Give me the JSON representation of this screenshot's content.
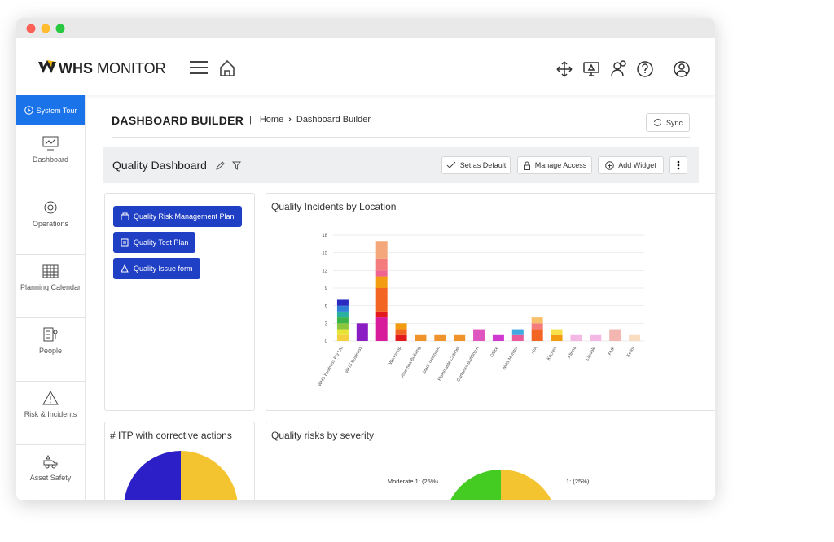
{
  "header": {
    "logo_bold": "WHS",
    "logo_light": "MONITOR"
  },
  "sidebar": {
    "tour": "System Tour",
    "items": [
      "Dashboard",
      "Operations",
      "Planning Calendar",
      "People",
      "Risk & Incidents",
      "Asset Safety"
    ]
  },
  "page": {
    "title": "DASHBOARD BUILDER",
    "breadcrumb": [
      "Home",
      "Dashboard Builder"
    ],
    "sync": "Sync"
  },
  "toolbar": {
    "title": "Quality Dashboard",
    "buttons": [
      "Set as Default",
      "Manage Access",
      "Add Widget"
    ]
  },
  "links": [
    "Quality Risk Management Plan",
    "Quality Test Plan",
    "Quality Issue form"
  ],
  "incidents": {
    "title": "Quality Incidents by Location",
    "categories": [
      "WHS Business Pty Ltd",
      "WHS Business",
      null,
      "Workshop",
      "Alaemba Building",
      "black mountain",
      "Flammable Cabinet",
      "Canberra Building A",
      "Office",
      "WHS Monitor",
      "N/A",
      "Kitchen",
      "Altona",
      "Lilydale",
      "FMF",
      "Keilor"
    ],
    "stacks": [
      [
        {
          "value": 1,
          "color": "#f4d03f"
        },
        {
          "value": 1,
          "color": "#e8e337"
        },
        {
          "value": 1,
          "color": "#8cc63f"
        },
        {
          "value": 1,
          "color": "#3cb44b"
        },
        {
          "value": 1,
          "color": "#2ab0a0"
        },
        {
          "value": 1,
          "color": "#2f7fd8"
        },
        {
          "value": 1,
          "color": "#2a2ac0"
        }
      ],
      [
        {
          "value": 3,
          "color": "#8a1cc4"
        }
      ],
      [
        {
          "value": 4,
          "color": "#d81b9a"
        },
        {
          "value": 1,
          "color": "#e31a1c"
        },
        {
          "value": 4,
          "color": "#f26522"
        },
        {
          "value": 2,
          "color": "#f39c12"
        },
        {
          "value": 1,
          "color": "#f06292"
        },
        {
          "value": 2,
          "color": "#f47c7c"
        },
        {
          "value": 3,
          "color": "#f4a77a"
        }
      ],
      [
        {
          "value": 1,
          "color": "#e31a1c"
        },
        {
          "value": 1,
          "color": "#f26522"
        },
        {
          "value": 1,
          "color": "#f39c12"
        }
      ],
      [
        {
          "value": 1,
          "color": "#f0932b"
        }
      ],
      [
        {
          "value": 1,
          "color": "#f0932b"
        }
      ],
      [
        {
          "value": 1,
          "color": "#f0932b"
        }
      ],
      [
        {
          "value": 2,
          "color": "#e056c0"
        }
      ],
      [
        {
          "value": 1,
          "color": "#d13ad1"
        }
      ],
      [
        {
          "value": 1,
          "color": "#e85a9a"
        },
        {
          "value": 1,
          "color": "#3fa9e0"
        }
      ],
      [
        {
          "value": 2,
          "color": "#f26522"
        },
        {
          "value": 1,
          "color": "#f47c7c"
        },
        {
          "value": 1,
          "color": "#f7c06a"
        }
      ],
      [
        {
          "value": 1,
          "color": "#f39c12"
        },
        {
          "value": 1,
          "color": "#f7e04a"
        }
      ],
      [
        {
          "value": 1,
          "color": "#f4b8e4"
        }
      ],
      [
        {
          "value": 1,
          "color": "#f4b8e4"
        }
      ],
      [
        {
          "value": 2,
          "color": "#f4b6b0"
        }
      ],
      [
        {
          "value": 1,
          "color": "#fadcc0"
        }
      ]
    ],
    "ylim": [
      0,
      18
    ],
    "yticks": [
      0,
      3,
      6,
      9,
      12,
      15,
      18
    ]
  },
  "itp": {
    "title": "# ITP with corrective actions",
    "values": [
      50,
      50
    ],
    "colors": [
      "#2c1fc7",
      "#f4c430"
    ]
  },
  "risks": {
    "title": "Quality risks by severity",
    "values": [
      25,
      25
    ],
    "value_labels": [
      "Moderate 1: (25%)",
      "1: (25%)"
    ],
    "colors": [
      "#44cc22",
      "#f4c430"
    ]
  }
}
